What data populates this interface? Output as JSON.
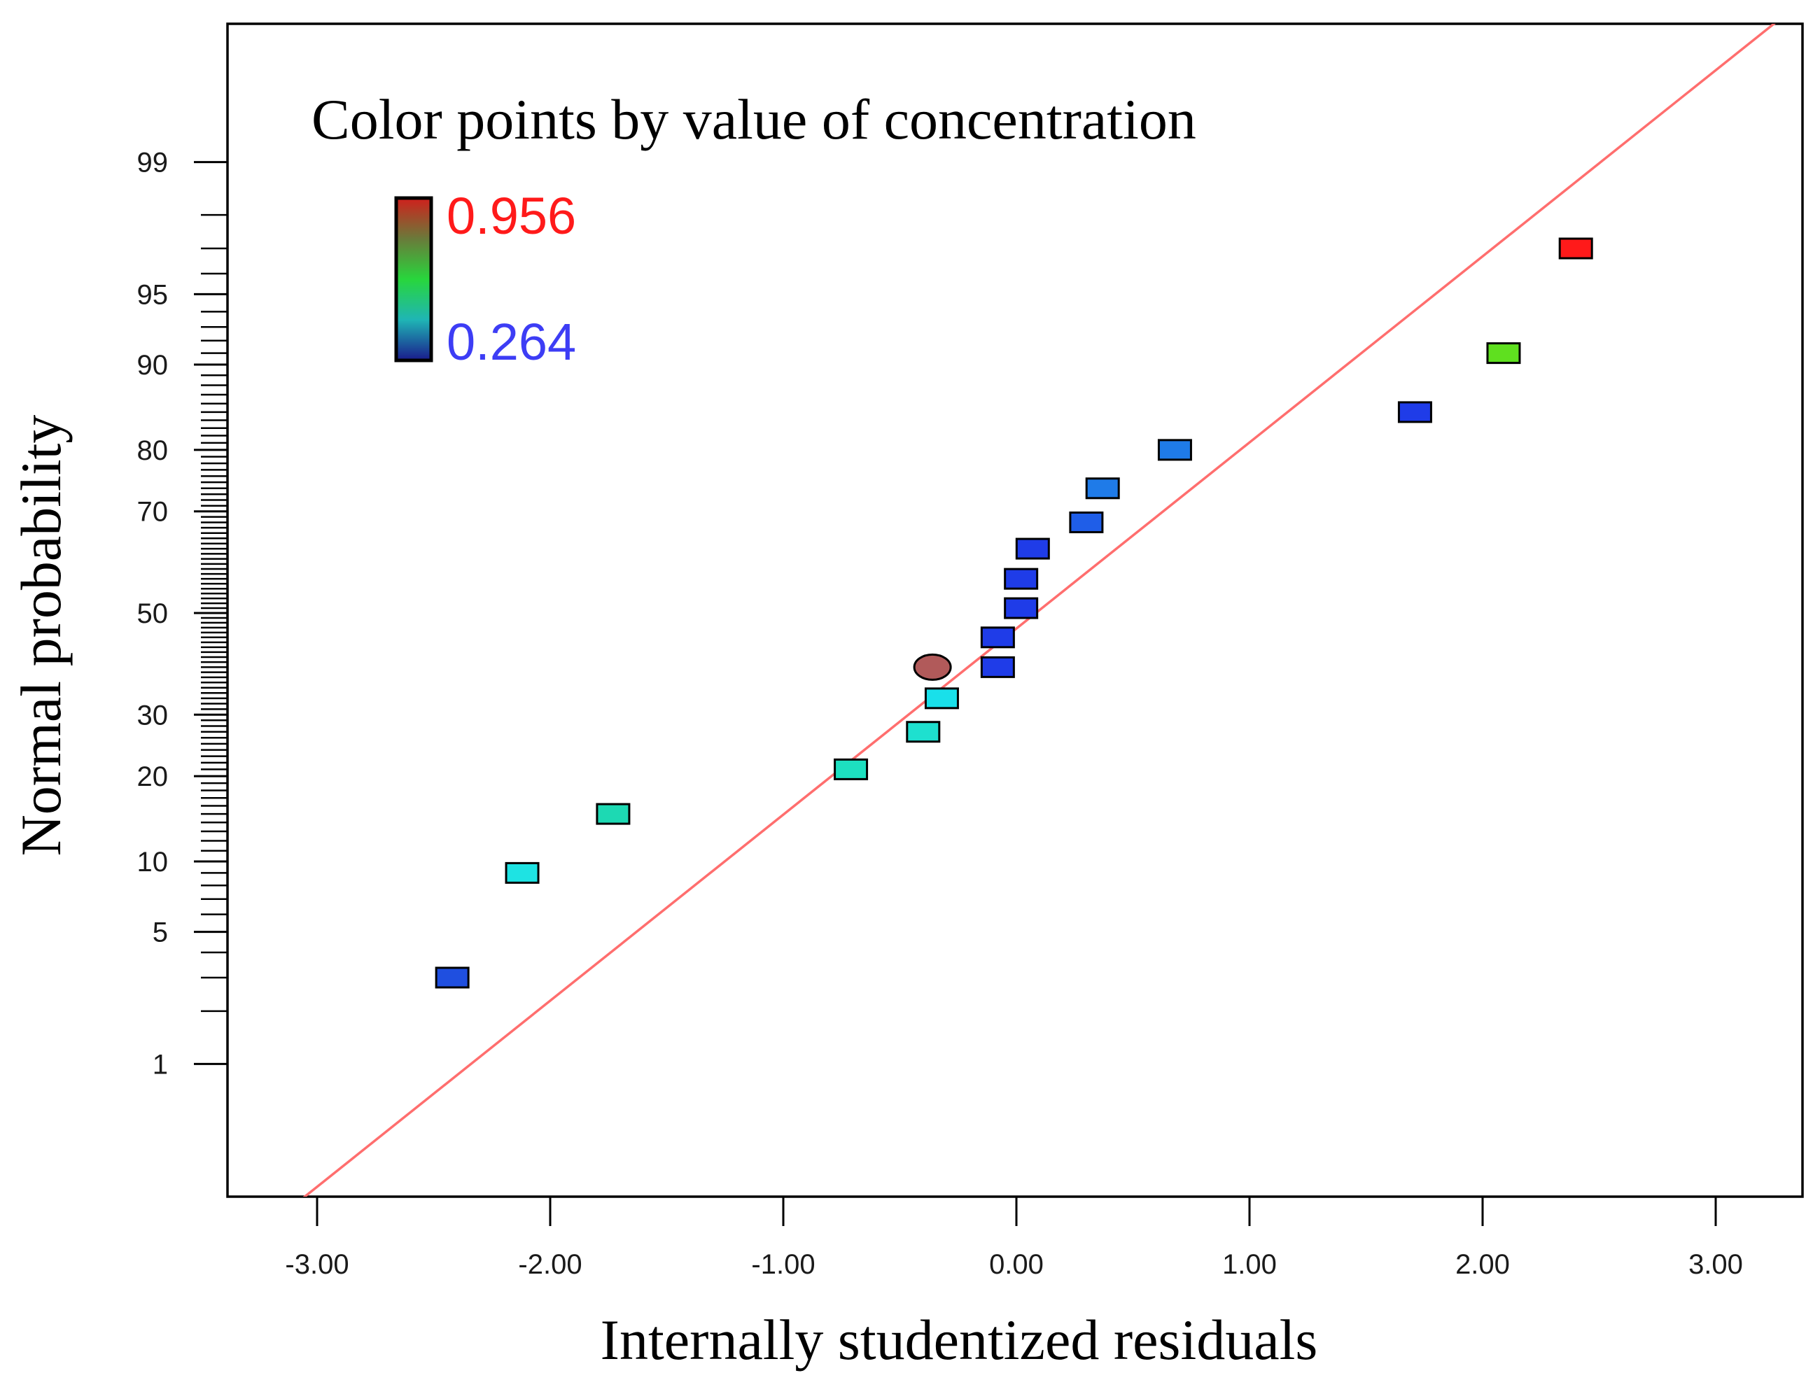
{
  "chart_data": {
    "type": "scatter",
    "title": "Color points by value of concentration",
    "xlabel": "Internally studentized residuals",
    "ylabel": "Normal probability",
    "xlim": [
      -3.4,
      3.4
    ],
    "x_ticks": [
      {
        "value": -3,
        "label": "-3.00"
      },
      {
        "value": -2,
        "label": "-2.00"
      },
      {
        "value": -1,
        "label": "-1.00"
      },
      {
        "value": 0,
        "label": "0.00"
      },
      {
        "value": 1,
        "label": "1.00"
      },
      {
        "value": 2,
        "label": "2.00"
      },
      {
        "value": 3,
        "label": "3.00"
      }
    ],
    "y_scale": "normal-probability",
    "ylim": [
      0.15,
      99.75
    ],
    "y_ticks": [
      {
        "value": 1,
        "label": "1"
      },
      {
        "value": 5,
        "label": "5"
      },
      {
        "value": 10,
        "label": "10"
      },
      {
        "value": 20,
        "label": "20"
      },
      {
        "value": 30,
        "label": "30"
      },
      {
        "value": 50,
        "label": "50"
      },
      {
        "value": 70,
        "label": "70"
      },
      {
        "value": 80,
        "label": "80"
      },
      {
        "value": 90,
        "label": "90"
      },
      {
        "value": 95,
        "label": "95"
      },
      {
        "value": 99,
        "label": "99"
      }
    ],
    "y_minor_ticks": [
      2,
      3,
      4,
      6,
      7,
      8,
      9,
      11,
      12,
      13,
      14,
      15,
      16,
      17,
      18,
      19,
      21,
      22,
      23,
      24,
      25,
      26,
      27,
      28,
      29,
      31,
      32,
      33,
      34,
      35,
      36,
      37,
      38,
      39,
      40,
      41,
      42,
      43,
      44,
      45,
      46,
      47,
      48,
      49,
      51,
      52,
      53,
      54,
      55,
      56,
      57,
      58,
      59,
      60,
      61,
      62,
      63,
      64,
      65,
      66,
      67,
      68,
      69,
      71,
      72,
      73,
      74,
      75,
      76,
      77,
      78,
      79,
      81,
      82,
      83,
      84,
      85,
      86,
      87,
      88,
      89,
      91,
      92,
      93,
      94,
      96,
      97,
      98
    ],
    "reference_line": {
      "color": "#ff6e6e",
      "intercept": -0.08,
      "slope": 0.96
    },
    "color_scale": {
      "min": 0.264,
      "max": 0.956,
      "min_label": "0.264",
      "max_label": "0.956",
      "min_color": "#3d3df5",
      "max_color": "#ff1a1a"
    },
    "points": [
      {
        "x": -2.42,
        "y": 3.0,
        "marker": "square",
        "color": "#1f4fe0"
      },
      {
        "x": -2.12,
        "y": 9.0,
        "marker": "square",
        "color": "#1ee3e3"
      },
      {
        "x": -1.73,
        "y": 15.0,
        "marker": "square",
        "color": "#1dd9b3"
      },
      {
        "x": -0.71,
        "y": 21.0,
        "marker": "square",
        "color": "#1de0c0"
      },
      {
        "x": -0.4,
        "y": 27.0,
        "marker": "square",
        "color": "#1ee0cf"
      },
      {
        "x": -0.32,
        "y": 33.0,
        "marker": "square",
        "color": "#19e0ea"
      },
      {
        "x": -0.36,
        "y": 39.0,
        "marker": "circle",
        "color": "#b15a5a"
      },
      {
        "x": -0.08,
        "y": 39.0,
        "marker": "square",
        "color": "#1f3ce8"
      },
      {
        "x": -0.08,
        "y": 45.0,
        "marker": "square",
        "color": "#1f3ce8"
      },
      {
        "x": 0.02,
        "y": 51.0,
        "marker": "square",
        "color": "#1f3ce8"
      },
      {
        "x": 0.02,
        "y": 57.0,
        "marker": "square",
        "color": "#1f3ce8"
      },
      {
        "x": 0.07,
        "y": 63.0,
        "marker": "square",
        "color": "#1f3ce8"
      },
      {
        "x": 0.3,
        "y": 68.0,
        "marker": "square",
        "color": "#1f5ee8"
      },
      {
        "x": 0.37,
        "y": 74.0,
        "marker": "square",
        "color": "#1f7be8"
      },
      {
        "x": 0.68,
        "y": 80.0,
        "marker": "square",
        "color": "#1f7be8"
      },
      {
        "x": 1.71,
        "y": 85.0,
        "marker": "square",
        "color": "#1f3ce8"
      },
      {
        "x": 2.09,
        "y": 91.0,
        "marker": "square",
        "color": "#5fe01f"
      },
      {
        "x": 2.4,
        "y": 97.0,
        "marker": "square",
        "color": "#ff1a1a"
      }
    ]
  }
}
